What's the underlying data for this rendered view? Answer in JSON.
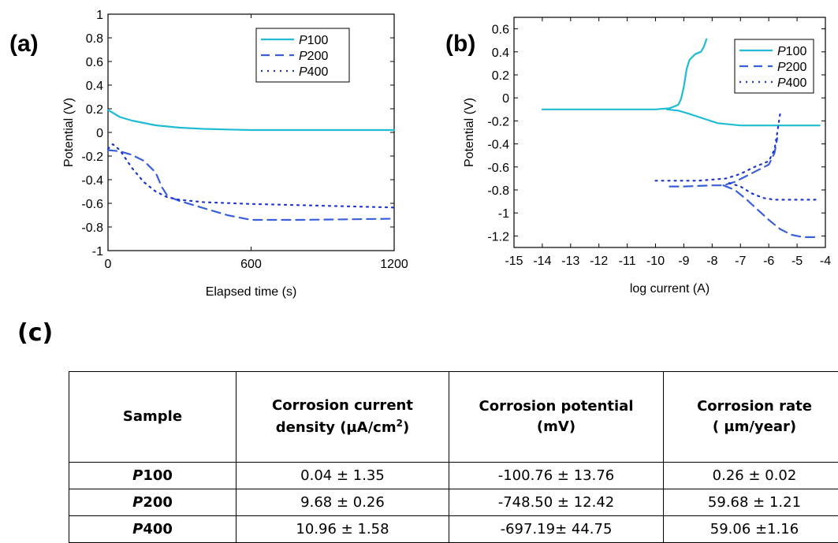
{
  "panel_labels": {
    "a": "(a)",
    "b": "(b)",
    "c": "(c)"
  },
  "colors": {
    "P100": "#1fbcd3",
    "P200": "#3a5fd9",
    "P400": "#1f37c7"
  },
  "chart_data": [
    {
      "type": "line",
      "xlabel": "Elapsed time (s)",
      "ylabel": "Potential (V)",
      "xlim": [
        0,
        1200
      ],
      "ylim": [
        -1,
        1
      ],
      "xticks": [
        "0",
        "600",
        "1200"
      ],
      "yticks": [
        "1",
        "0.8",
        "0.6",
        "0.4",
        "0.2",
        "0",
        "-0.2",
        "-0.4",
        "-0.6",
        "-0.8",
        "-1"
      ],
      "grid": false,
      "legend_position": "top-right",
      "series": [
        {
          "name": "P100",
          "style": "solid",
          "x": [
            0,
            50,
            100,
            200,
            300,
            400,
            500,
            600,
            800,
            1000,
            1200
          ],
          "y": [
            0.19,
            0.13,
            0.1,
            0.06,
            0.04,
            0.03,
            0.025,
            0.02,
            0.02,
            0.02,
            0.02
          ]
        },
        {
          "name": "P200",
          "style": "dashed",
          "x": [
            0,
            50,
            100,
            150,
            200,
            225,
            250,
            300,
            400,
            500,
            600,
            800,
            1000,
            1200
          ],
          "y": [
            -0.15,
            -0.16,
            -0.19,
            -0.24,
            -0.34,
            -0.46,
            -0.54,
            -0.58,
            -0.64,
            -0.7,
            -0.74,
            -0.74,
            -0.735,
            -0.73
          ]
        },
        {
          "name": "P400",
          "style": "dotted",
          "x": [
            0,
            20,
            50,
            100,
            150,
            200,
            250,
            300,
            400,
            600,
            800,
            1000,
            1200
          ],
          "y": [
            -0.14,
            -0.1,
            -0.15,
            -0.3,
            -0.42,
            -0.5,
            -0.55,
            -0.57,
            -0.59,
            -0.605,
            -0.615,
            -0.625,
            -0.635
          ]
        }
      ]
    },
    {
      "type": "line",
      "xlabel": "log current (A)",
      "ylabel": "Potential (V)",
      "xlim": [
        -15,
        -4
      ],
      "ylim": [
        -1.3,
        0.7
      ],
      "xticks": [
        "-15",
        "-14",
        "-13",
        "-12",
        "-11",
        "-10",
        "-9",
        "-8",
        "-7",
        "-6",
        "-5",
        "-4"
      ],
      "yticks": [
        "0.6",
        "0.4",
        "0.2",
        "0",
        "-0.2",
        "-0.4",
        "-0.6",
        "-0.8",
        "-1",
        "-1.2"
      ],
      "grid": false,
      "legend_position": "top-right",
      "series": [
        {
          "name": "P100",
          "style": "solid",
          "segments": [
            {
              "x": [
                -14,
                -12,
                -10,
                -9.5,
                -9.2,
                -9.1,
                -9,
                -8.9,
                -8.8,
                -8.6,
                -8.4,
                -8.3,
                -8.2
              ],
              "y": [
                -0.1,
                -0.1,
                -0.1,
                -0.09,
                -0.06,
                -0.01,
                0.1,
                0.25,
                0.33,
                0.38,
                0.4,
                0.44,
                0.51
              ]
            },
            {
              "x": [
                -9.6,
                -9.2,
                -8.8,
                -8.3,
                -7.8,
                -7,
                -6,
                -4.2
              ],
              "y": [
                -0.1,
                -0.11,
                -0.14,
                -0.18,
                -0.22,
                -0.24,
                -0.24,
                -0.24
              ]
            }
          ]
        },
        {
          "name": "P200",
          "style": "dashed",
          "segments": [
            {
              "x": [
                -9.5,
                -9,
                -8.5,
                -8,
                -7.6,
                -7.2,
                -6.8,
                -6.4,
                -6,
                -5.8,
                -5.7
              ],
              "y": [
                -0.77,
                -0.77,
                -0.765,
                -0.76,
                -0.76,
                -0.73,
                -0.68,
                -0.63,
                -0.58,
                -0.48,
                -0.35
              ]
            },
            {
              "x": [
                -7.6,
                -7.2,
                -6.8,
                -6.4,
                -6,
                -5.6,
                -5.2,
                -4.8,
                -4.2
              ],
              "y": [
                -0.76,
                -0.8,
                -0.88,
                -0.97,
                -1.06,
                -1.14,
                -1.19,
                -1.21,
                -1.21
              ]
            }
          ]
        },
        {
          "name": "P400",
          "style": "dotted",
          "segments": [
            {
              "x": [
                -10,
                -9.5,
                -9,
                -8.5,
                -8,
                -7.5,
                -7,
                -6.5,
                -6,
                -5.8,
                -5.7,
                -5.6
              ],
              "y": [
                -0.72,
                -0.72,
                -0.72,
                -0.72,
                -0.71,
                -0.7,
                -0.66,
                -0.6,
                -0.55,
                -0.45,
                -0.3,
                -0.14
              ]
            },
            {
              "x": [
                -7.4,
                -7,
                -6.6,
                -6.2,
                -5.8,
                -5,
                -4.2
              ],
              "y": [
                -0.74,
                -0.77,
                -0.83,
                -0.87,
                -0.885,
                -0.885,
                -0.885
              ]
            }
          ]
        }
      ]
    },
    {
      "type": "table",
      "headers": [
        {
          "line1": "Sample",
          "line2": ""
        },
        {
          "line1": "Corrosion current",
          "line2": "density (µA/cm",
          "sup": "2",
          "tail": ")"
        },
        {
          "line1": "Corrosion potential",
          "line2": "(mV)"
        },
        {
          "line1": "Corrosion rate",
          "line2": "( µm/year)"
        }
      ],
      "rows": [
        {
          "sample_prefix": "P",
          "sample_num": "100",
          "current": "0.04 ± 1.35",
          "potential": "-100.76 ± 13.76",
          "rate": "0.26 ± 0.02"
        },
        {
          "sample_prefix": "P",
          "sample_num": "200",
          "current": "9.68 ± 0.26",
          "potential": "-748.50 ± 12.42",
          "rate": "59.68 ± 1.21"
        },
        {
          "sample_prefix": "P",
          "sample_num": "400",
          "current": "10.96 ± 1.58",
          "potential": "-697.19± 44.75",
          "rate": "59.06 ±1.16"
        }
      ]
    }
  ]
}
